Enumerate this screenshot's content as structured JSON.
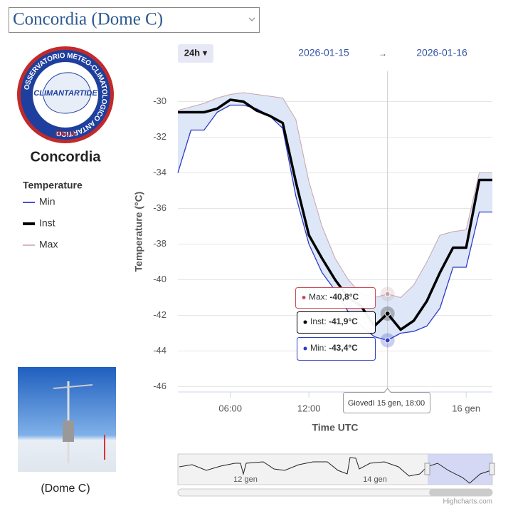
{
  "station_select": "Concordia (Dome C)",
  "logo": {
    "ring_text": "OSSERVATORIO METEO-CLIMATOLOGICO ANTARTICO",
    "brand": "CLIMANTARTIDE",
    "country": "ITALIA"
  },
  "station_name": "Concordia",
  "photo_caption": "(Dome C)",
  "range_button": "24h ▾",
  "range_from": "2026-01-15",
  "range_arrow": "→",
  "range_to": "2026-01-16",
  "chart_data": {
    "type": "line",
    "legend_title": "Temperature",
    "y_label": "Temperature (°C)",
    "x_label": "Time UTC",
    "x": [
      "2026-01-15T02:00",
      "2026-01-15T03:00",
      "2026-01-15T04:00",
      "2026-01-15T05:00",
      "2026-01-15T06:00",
      "2026-01-15T07:00",
      "2026-01-15T08:00",
      "2026-01-15T09:00",
      "2026-01-15T10:00",
      "2026-01-15T11:00",
      "2026-01-15T12:00",
      "2026-01-15T13:00",
      "2026-01-15T14:00",
      "2026-01-15T15:00",
      "2026-01-15T16:00",
      "2026-01-15T17:00",
      "2026-01-15T18:00",
      "2026-01-15T19:00",
      "2026-01-15T20:00",
      "2026-01-15T21:00",
      "2026-01-15T22:00",
      "2026-01-15T23:00",
      "2026-01-16T00:00",
      "2026-01-16T01:00",
      "2026-01-16T02:00"
    ],
    "series": [
      {
        "name": "Min",
        "color": "#2b3bc4",
        "values": [
          -34.0,
          -31.6,
          -31.6,
          -30.6,
          -30.2,
          -30.2,
          -30.4,
          -30.8,
          -31.5,
          -35.3,
          -38.0,
          -39.6,
          -40.6,
          -41.8,
          -42.6,
          -43.2,
          -43.4,
          -43.0,
          -42.9,
          -42.6,
          -41.6,
          -39.3,
          -39.3,
          -36.2,
          -36.2
        ]
      },
      {
        "name": "Inst",
        "color": "#000000",
        "values": [
          -30.6,
          -30.6,
          -30.6,
          -30.4,
          -29.9,
          -30.0,
          -30.5,
          -30.8,
          -31.2,
          -34.5,
          -37.5,
          -38.8,
          -40.0,
          -41.0,
          -41.5,
          -42.6,
          -41.9,
          -42.8,
          -42.3,
          -41.2,
          -39.6,
          -38.2,
          -38.2,
          -34.4,
          -34.4
        ]
      },
      {
        "name": "Max",
        "color": "#c9a3ad",
        "values": [
          -30.5,
          -30.3,
          -30.1,
          -29.8,
          -29.6,
          -29.5,
          -29.6,
          -29.7,
          -29.8,
          -31.0,
          -34.5,
          -37.0,
          -38.8,
          -40.0,
          -40.8,
          -41.0,
          -40.8,
          -41.0,
          -40.3,
          -39.0,
          -37.5,
          -37.3,
          -37.2,
          -34.0,
          -34.0
        ]
      }
    ],
    "band_color": "#dde7f8",
    "xlim": [
      "2026-01-15T02:00",
      "2026-01-16T02:00"
    ],
    "xticks": [
      {
        "value": "2026-01-15T06:00",
        "label": "06:00"
      },
      {
        "value": "2026-01-15T12:00",
        "label": "12:00"
      },
      {
        "value": "2026-01-16T00:00",
        "label": "16 gen"
      }
    ],
    "ylim": [
      -46.3,
      -28.3
    ],
    "yticks": [
      -30,
      -32,
      -34,
      -36,
      -38,
      -40,
      -42,
      -44,
      -46
    ],
    "grid": true,
    "crosshair": "2026-01-15T18:00",
    "tooltip": {
      "date": "Giovedì 15 gen, 18:00",
      "items": [
        {
          "label": "Max: ",
          "value": "-40,8°C"
        },
        {
          "label": "Inst: ",
          "value": "-41,9°C"
        },
        {
          "label": "Min: ",
          "value": "-43,4°C"
        }
      ]
    },
    "navigator_labels": [
      "12 gen",
      "14 gen"
    ],
    "credits": "Highcharts.com"
  }
}
